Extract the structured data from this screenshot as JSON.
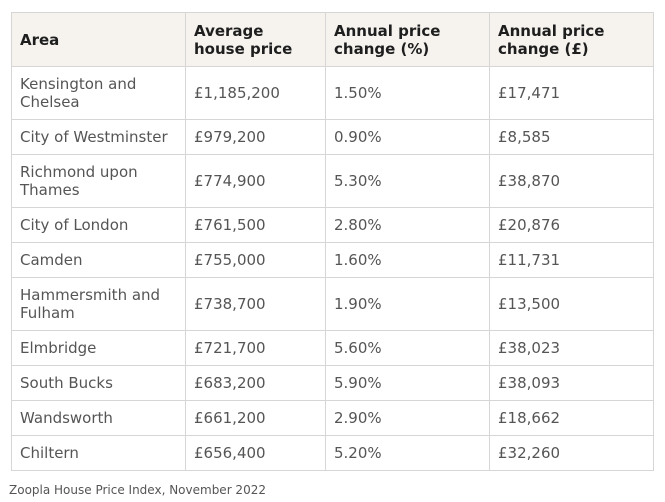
{
  "table": {
    "headers": [
      "Area",
      "Average house price",
      "Annual price change (%)",
      "Annual price change (£)"
    ],
    "rows": [
      [
        "Kensington and Chelsea",
        "£1,185,200",
        "1.50%",
        "£17,471"
      ],
      [
        "City of Westminster",
        "£979,200",
        "0.90%",
        "£8,585"
      ],
      [
        "Richmond upon Thames",
        "£774,900",
        "5.30%",
        "£38,870"
      ],
      [
        "City of London",
        "£761,500",
        "2.80%",
        "£20,876"
      ],
      [
        "Camden",
        "£755,000",
        "1.60%",
        "£11,731"
      ],
      [
        "Hammersmith and Fulham",
        "£738,700",
        "1.90%",
        "£13,500"
      ],
      [
        "Elmbridge",
        "£721,700",
        "5.60%",
        "£38,023"
      ],
      [
        "South Bucks",
        "£683,200",
        "5.90%",
        "£38,093"
      ],
      [
        "Wandsworth",
        "£661,200",
        "2.90%",
        "£18,662"
      ],
      [
        "Chiltern",
        "£656,400",
        "5.20%",
        "£32,260"
      ]
    ]
  },
  "source": "Zoopla House Price Index, November 2022"
}
